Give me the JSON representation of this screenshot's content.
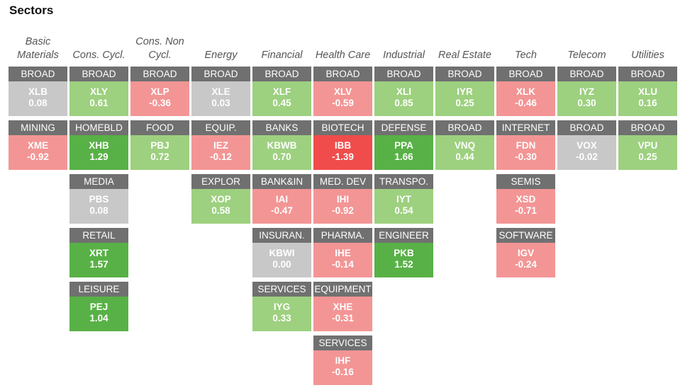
{
  "title": "Sectors",
  "colors": {
    "strong_gain": "#58b146",
    "gain": "#9dd07f",
    "flat": "#c8c8c8",
    "loss": "#f39595",
    "strong_loss": "#f04c4c",
    "label_bg": "#707070"
  },
  "columns": [
    {
      "name": "Basic\nMaterials",
      "tiles": [
        {
          "label": "BROAD",
          "ticker": "XLB",
          "change": "0.08"
        },
        {
          "label": "MINING",
          "ticker": "XME",
          "change": "-0.92"
        }
      ]
    },
    {
      "name": "Cons. Cycl.",
      "tiles": [
        {
          "label": "BROAD",
          "ticker": "XLY",
          "change": "0.61"
        },
        {
          "label": "HOMEBLD",
          "ticker": "XHB",
          "change": "1.29"
        },
        {
          "label": "MEDIA",
          "ticker": "PBS",
          "change": "0.08"
        },
        {
          "label": "RETAIL",
          "ticker": "XRT",
          "change": "1.57"
        },
        {
          "label": "LEISURE",
          "ticker": "PEJ",
          "change": "1.04"
        }
      ]
    },
    {
      "name": "Cons. Non\nCycl.",
      "tiles": [
        {
          "label": "BROAD",
          "ticker": "XLP",
          "change": "-0.36"
        },
        {
          "label": "FOOD",
          "ticker": "PBJ",
          "change": "0.72"
        }
      ]
    },
    {
      "name": "Energy",
      "tiles": [
        {
          "label": "BROAD",
          "ticker": "XLE",
          "change": "0.03"
        },
        {
          "label": "EQUIP.",
          "ticker": "IEZ",
          "change": "-0.12"
        },
        {
          "label": "EXPLOR",
          "ticker": "XOP",
          "change": "0.58"
        }
      ]
    },
    {
      "name": "Financial",
      "tiles": [
        {
          "label": "BROAD",
          "ticker": "XLF",
          "change": "0.45"
        },
        {
          "label": "BANKS",
          "ticker": "KBWB",
          "change": "0.70"
        },
        {
          "label": "BANK&IN",
          "ticker": "IAI",
          "change": "-0.47"
        },
        {
          "label": "INSURAN.",
          "ticker": "KBWI",
          "change": "0.00"
        },
        {
          "label": "SERVICES",
          "ticker": "IYG",
          "change": "0.33"
        }
      ]
    },
    {
      "name": "Health Care",
      "tiles": [
        {
          "label": "BROAD",
          "ticker": "XLV",
          "change": "-0.59"
        },
        {
          "label": "BIOTECH",
          "ticker": "IBB",
          "change": "-1.39"
        },
        {
          "label": "MED. DEV",
          "ticker": "IHI",
          "change": "-0.92"
        },
        {
          "label": "PHARMA.",
          "ticker": "IHE",
          "change": "-0.14"
        },
        {
          "label": "EQUIPMENT",
          "ticker": "XHE",
          "change": "-0.31"
        },
        {
          "label": "SERVICES",
          "ticker": "IHF",
          "change": "-0.16"
        }
      ]
    },
    {
      "name": "Industrial",
      "tiles": [
        {
          "label": "BROAD",
          "ticker": "XLI",
          "change": "0.85"
        },
        {
          "label": "DEFENSE",
          "ticker": "PPA",
          "change": "1.66"
        },
        {
          "label": "TRANSPO.",
          "ticker": "IYT",
          "change": "0.54"
        },
        {
          "label": "ENGINEER",
          "ticker": "PKB",
          "change": "1.52"
        }
      ]
    },
    {
      "name": "Real Estate",
      "tiles": [
        {
          "label": "BROAD",
          "ticker": "IYR",
          "change": "0.25"
        },
        {
          "label": "BROAD",
          "ticker": "VNQ",
          "change": "0.44"
        }
      ]
    },
    {
      "name": "Tech",
      "tiles": [
        {
          "label": "BROAD",
          "ticker": "XLK",
          "change": "-0.46"
        },
        {
          "label": "INTERNET",
          "ticker": "FDN",
          "change": "-0.30"
        },
        {
          "label": "SEMIS",
          "ticker": "XSD",
          "change": "-0.71"
        },
        {
          "label": "SOFTWARE",
          "ticker": "IGV",
          "change": "-0.24"
        }
      ]
    },
    {
      "name": "Telecom",
      "tiles": [
        {
          "label": "BROAD",
          "ticker": "IYZ",
          "change": "0.30"
        },
        {
          "label": "BROAD",
          "ticker": "VOX",
          "change": "-0.02"
        }
      ]
    },
    {
      "name": "Utilities",
      "tiles": [
        {
          "label": "BROAD",
          "ticker": "XLU",
          "change": "0.16"
        },
        {
          "label": "BROAD",
          "ticker": "VPU",
          "change": "0.25"
        }
      ]
    }
  ]
}
